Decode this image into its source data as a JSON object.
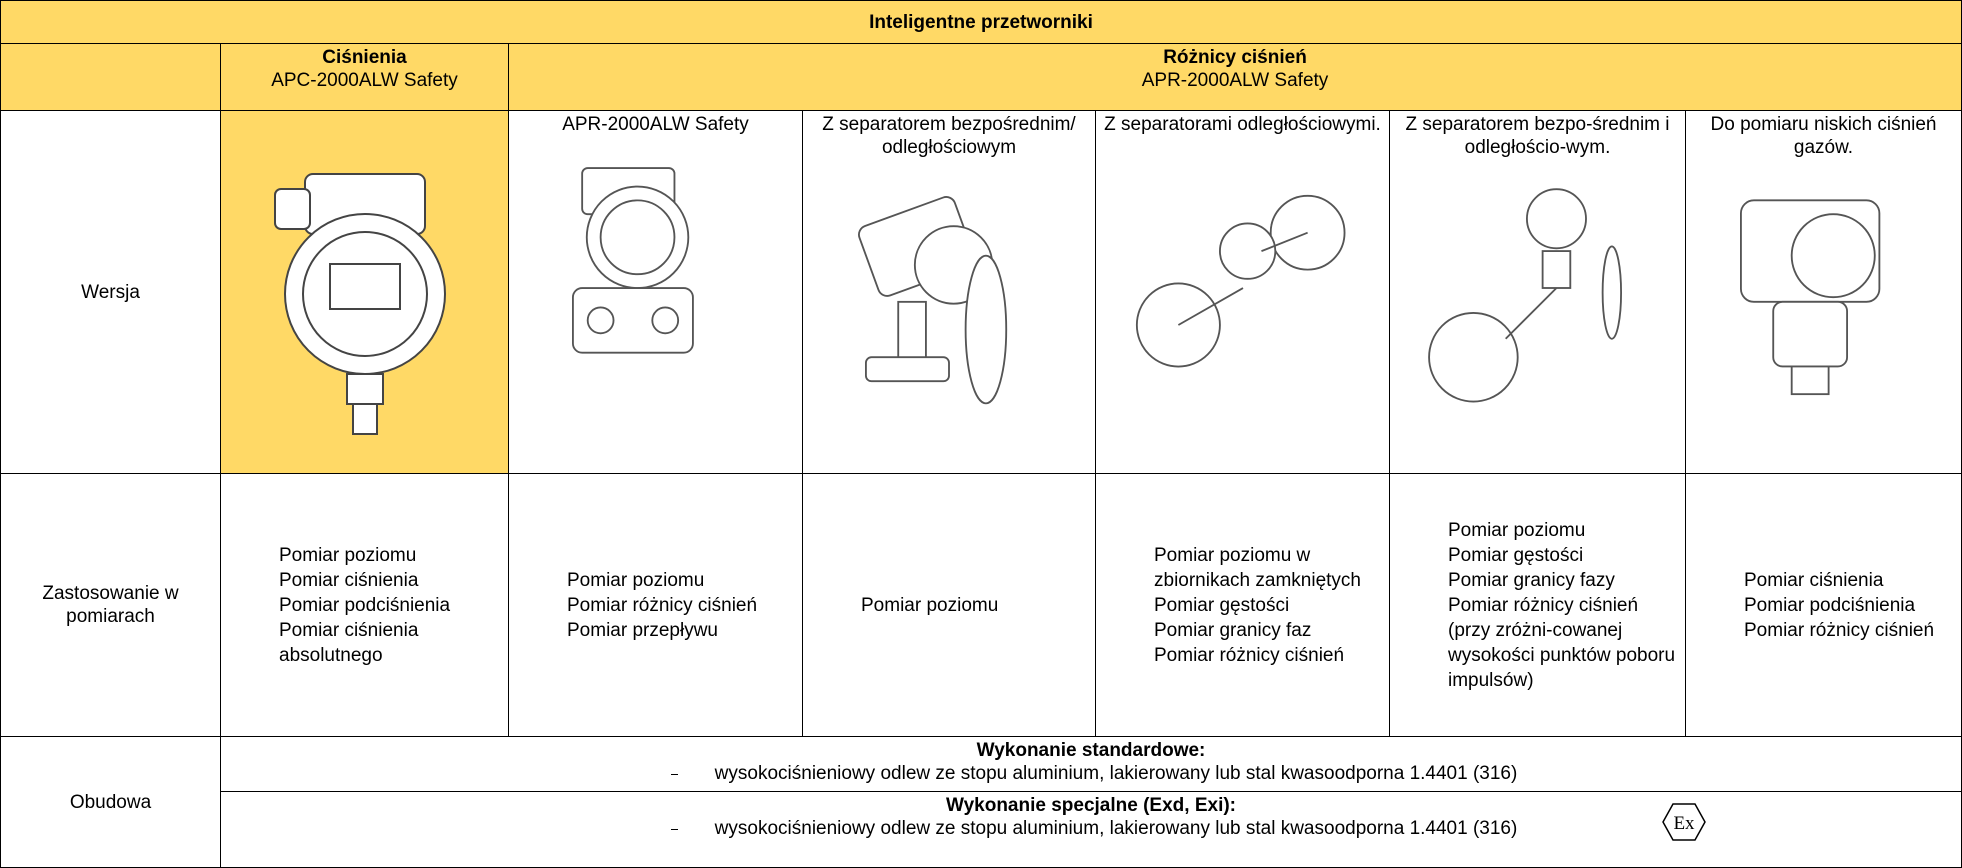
{
  "table": {
    "title": "Inteligentne przetworniki",
    "header": [
      {
        "title": "Ciśnienia",
        "subtitle": "APC-2000ALW Safety"
      },
      {
        "title": "Różnicy ciśnień",
        "subtitle": "APR-2000ALW Safety"
      }
    ],
    "version": {
      "label": "Wersja",
      "captions": [
        "APR-2000ALW Safety",
        "Z separatorem bezpośrednim/ odległościowym",
        "Z separatorami odległościowymi.",
        "Z separatorem bezpo-średnim i odległościo-wym.",
        "Do pomiaru niskich ciśnień gazów."
      ]
    },
    "applications": {
      "label": "Zastosowanie w pomiarach",
      "columns": [
        [
          "Pomiar poziomu",
          "Pomiar ciśnienia",
          "Pomiar podciśnienia",
          "Pomiar ciśnienia absolutnego"
        ],
        [
          "Pomiar poziomu",
          "Pomiar różnicy ciśnień",
          "Pomiar przepływu"
        ],
        [
          "Pomiar poziomu"
        ],
        [
          "Pomiar poziomu w zbiornikach zamkniętych",
          "Pomiar gęstości",
          "Pomiar granicy faz",
          "Pomiar różnicy ciśnień"
        ],
        [
          "Pomiar poziomu",
          "Pomiar gęstości",
          "Pomiar granicy fazy",
          "Pomiar różnicy ciśnień (przy zróżni-cowanej wysokości punktów poboru impulsów)"
        ],
        [
          "Pomiar ciśnienia",
          "Pomiar podciśnienia",
          "Pomiar różnicy ciśnień"
        ]
      ]
    },
    "housing": {
      "label": "Obudowa",
      "standard": {
        "title": "Wykonanie standardowe:",
        "item": "wysokociśnieniowy odlew ze stopu aluminium, lakierowany lub stal kwasoodporna 1.4401 (316)"
      },
      "special": {
        "title": "Wykonanie specjalne (Exd, Exi):",
        "item": "wysokociśnieniowy odlew ze stopu aluminium, lakierowany lub stal kwasoodporna 1.4401 (316)",
        "mark": "Ex"
      }
    }
  }
}
